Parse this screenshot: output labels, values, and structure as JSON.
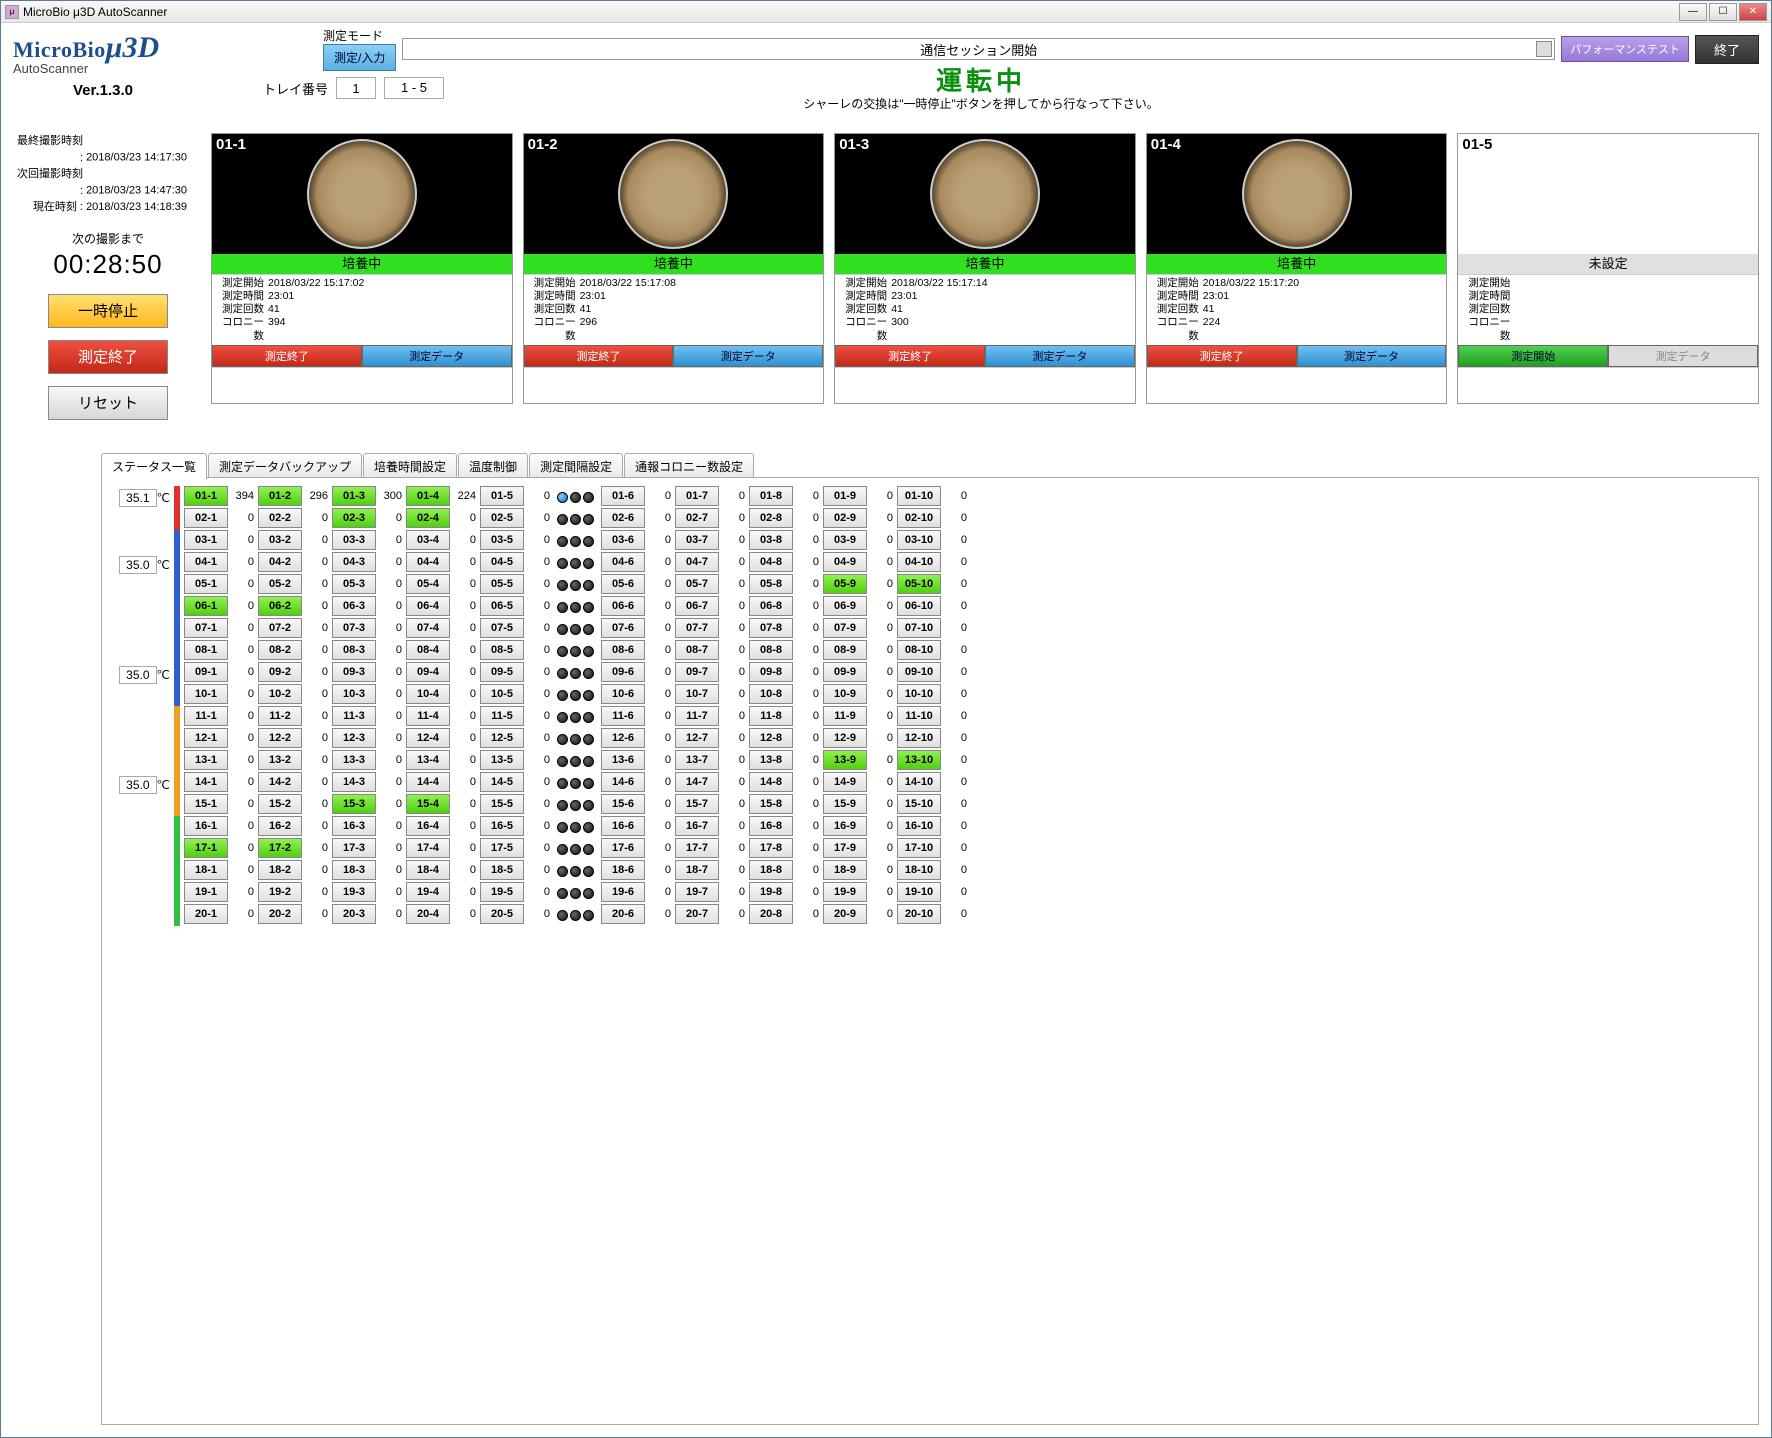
{
  "window": {
    "title": "MicroBio μ3D AutoScanner"
  },
  "logo": {
    "brand": "MicroBio",
    "product": "μ3D",
    "sub": "AutoScanner",
    "version": "Ver.1.3.0"
  },
  "header": {
    "mode_label": "測定モード",
    "mode_btn": "測定/入力",
    "session": "通信セッション開始",
    "perf_btn": "パフォーマンステスト",
    "end_btn": "終了"
  },
  "tray": {
    "label": "トレイ番号",
    "num": "1",
    "range": "1 - 5"
  },
  "status": {
    "running": "運転中",
    "note": "シャーレの交換は\"一時停止\"ボタンを押してから行なって下さい。"
  },
  "times": {
    "rows": [
      {
        "label": "最終撮影時刻 :",
        "val": "2018/03/23 14:17:30"
      },
      {
        "label": "次回撮影時刻 :",
        "val": "2018/03/23 14:47:30"
      },
      {
        "label": "現在時刻 :",
        "val": "2018/03/23 14:18:39"
      }
    ],
    "countdown_label": "次の撮影まで",
    "countdown": "00:28:50"
  },
  "controls": {
    "pause": "一時停止",
    "end": "測定終了",
    "reset": "リセット"
  },
  "dish_labels": {
    "status_cultivating": "培養中",
    "status_unset": "未設定",
    "start_label": "測定開始",
    "time_label": "測定時間",
    "count_label": "測定回数",
    "colony_label": "コロニー数",
    "btn_end": "測定終了",
    "btn_data": "測定データ",
    "btn_start": "測定開始"
  },
  "dishes": [
    {
      "id": "01-1",
      "status": "培養中",
      "status_color": "#30e020",
      "start": "2018/03/22 15:17:02",
      "time": "23:01",
      "count": "41",
      "colony": "394",
      "has_image": true,
      "btn1": "end",
      "btn2": "data"
    },
    {
      "id": "01-2",
      "status": "培養中",
      "status_color": "#30e020",
      "start": "2018/03/22 15:17:08",
      "time": "23:01",
      "count": "41",
      "colony": "296",
      "has_image": true,
      "btn1": "end",
      "btn2": "data"
    },
    {
      "id": "01-3",
      "status": "培養中",
      "status_color": "#30e020",
      "start": "2018/03/22 15:17:14",
      "time": "23:01",
      "count": "41",
      "colony": "300",
      "has_image": true,
      "btn1": "end",
      "btn2": "data"
    },
    {
      "id": "01-4",
      "status": "培養中",
      "status_color": "#30e020",
      "start": "2018/03/22 15:17:20",
      "time": "23:01",
      "count": "41",
      "colony": "224",
      "has_image": true,
      "btn1": "end",
      "btn2": "data"
    },
    {
      "id": "01-5",
      "status": "未設定",
      "status_color": "#e0e0e0",
      "start": "",
      "time": "",
      "count": "",
      "colony": "",
      "has_image": false,
      "btn1": "start",
      "btn2": "disabled"
    }
  ],
  "tabs": [
    "ステータス一覧",
    "測定データバックアップ",
    "培養時間設定",
    "温度制御",
    "測定間隔設定",
    "通報コロニー数設定"
  ],
  "status_table": {
    "temps": [
      "35.1",
      "35.0",
      "35.0",
      "35.0"
    ],
    "temp_unit": "℃",
    "bar_colors": [
      "#e03030",
      "#e03030",
      "#3060d0",
      "#3060d0",
      "#3060d0",
      "#3060d0",
      "#3060d0",
      "#3060d0",
      "#3060d0",
      "#3060d0",
      "#f0a020",
      "#f0a020",
      "#f0a020",
      "#f0a020",
      "#f0a020",
      "#30c040",
      "#30c040",
      "#30c040",
      "#30c040",
      "#30c040"
    ],
    "green_cells": [
      "01-1",
      "01-2",
      "01-3",
      "01-4",
      "02-3",
      "02-4",
      "05-9",
      "05-10",
      "06-1",
      "06-2",
      "13-9",
      "13-10",
      "15-3",
      "15-4",
      "17-1",
      "17-2"
    ],
    "values": {
      "01-1": 394,
      "01-2": 296,
      "01-3": 300,
      "01-4": 224
    },
    "led_first_blue": true,
    "rows": 20
  },
  "colors": {
    "status_green": "#0a9010",
    "pause_bg": "#ffc830",
    "end_bg": "#d03020",
    "data_bg": "#50a8e0",
    "start_bg": "#40c040"
  }
}
